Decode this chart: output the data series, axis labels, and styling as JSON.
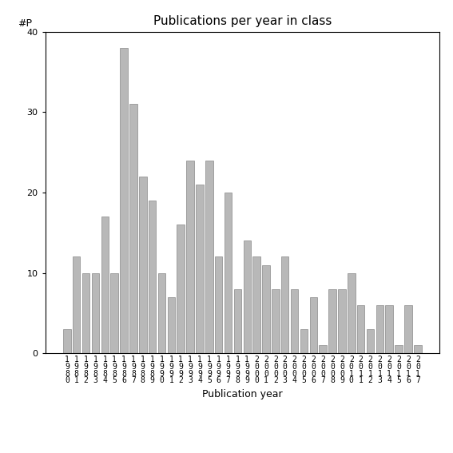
{
  "title": "Publications per year in class",
  "xlabel": "Publication year",
  "ylabel": "#P",
  "years": [
    "1980",
    "1981",
    "1982",
    "1983",
    "1984",
    "1985",
    "1986",
    "1987",
    "1988",
    "1989",
    "1990",
    "1991",
    "1992",
    "1993",
    "1994",
    "1995",
    "1996",
    "1997",
    "1998",
    "1999",
    "2000",
    "2001",
    "2002",
    "2003",
    "2004",
    "2005",
    "2006",
    "2007",
    "2008",
    "2009",
    "2010",
    "2011",
    "2012",
    "2013",
    "2014",
    "2015",
    "2016",
    "2017"
  ],
  "values": [
    3,
    12,
    10,
    10,
    17,
    10,
    38,
    31,
    22,
    19,
    10,
    7,
    16,
    24,
    21,
    24,
    12,
    20,
    8,
    14,
    12,
    11,
    8,
    12,
    8,
    3,
    7,
    1,
    8,
    8,
    10,
    6,
    3,
    6,
    6,
    1,
    6,
    1
  ],
  "bar_color": "#b8b8b8",
  "bar_edgecolor": "#888888",
  "ylim": [
    0,
    40
  ],
  "yticks": [
    0,
    10,
    20,
    30,
    40
  ],
  "bg_color": "#ffffff",
  "title_fontsize": 11,
  "xlabel_fontsize": 9,
  "tick_fontsize": 8
}
